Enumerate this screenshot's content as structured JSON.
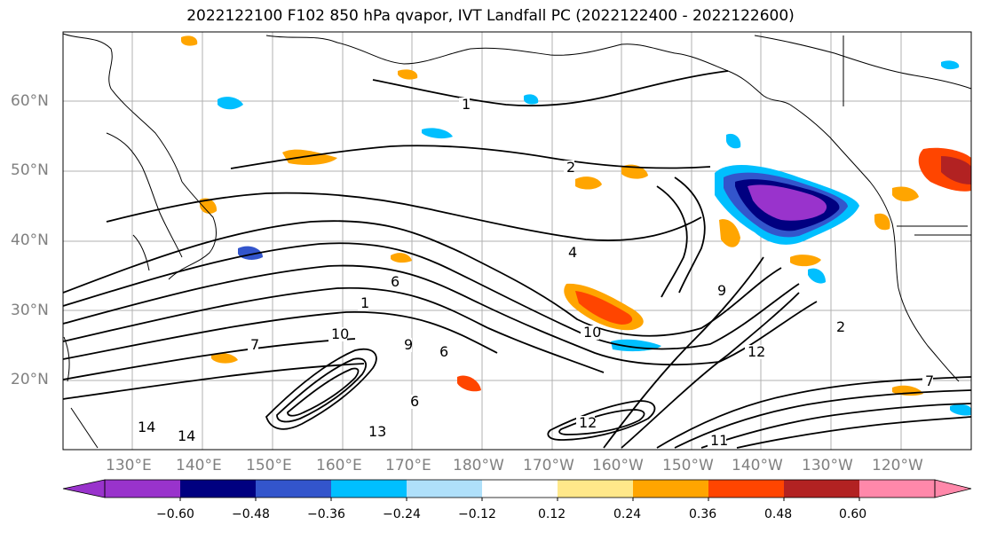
{
  "title": "2022122100 F102 850 hPa qvapor, IVT Landfall PC (2022122400 - 2022122600)",
  "map": {
    "lat_labels": [
      "60°N",
      "50°N",
      "40°N",
      "30°N",
      "20°N"
    ],
    "lon_labels": [
      "130°E",
      "140°E",
      "150°E",
      "160°E",
      "170°E",
      "180°W",
      "170°W",
      "160°W",
      "150°W",
      "140°W",
      "130°W",
      "120°W"
    ],
    "contour_labels": [
      "1",
      "2",
      "4",
      "6",
      "7",
      "10",
      "1",
      "9",
      "6",
      "6",
      "10",
      "12",
      "13",
      "14",
      "14",
      "7",
      "2",
      "9",
      "12",
      "11"
    ]
  },
  "colorbar": {
    "tick_labels": [
      "−0.60",
      "−0.48",
      "−0.36",
      "−0.24",
      "−0.12",
      "0.12",
      "0.24",
      "0.36",
      "0.48",
      "0.60"
    ],
    "colors": [
      "#9933cc",
      "#000080",
      "#3355cc",
      "#00bfff",
      "#afe0fa",
      "#ffffff",
      "#ffe88a",
      "#ffa500",
      "#ff4500",
      "#b22222",
      "#ff88aa"
    ]
  }
}
